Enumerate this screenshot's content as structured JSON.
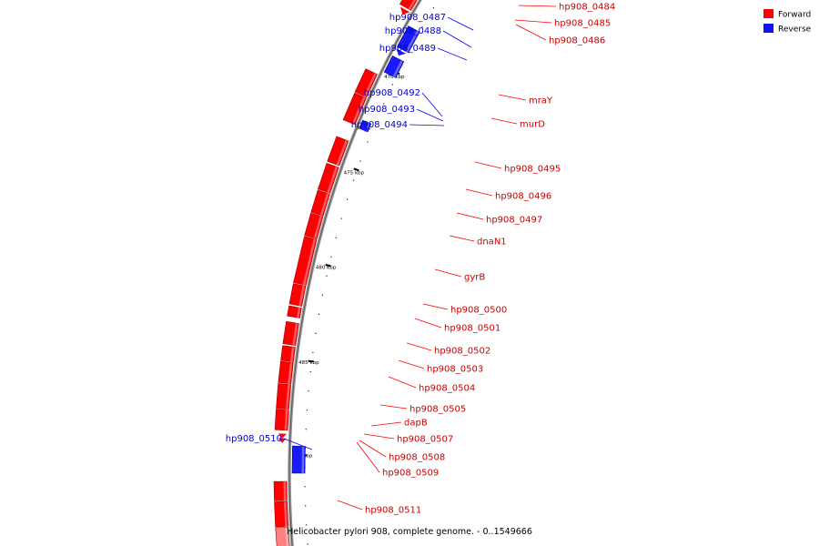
{
  "caption": "Helicobacter pylori 908, complete genome. - 0..1549666",
  "legend": [
    {
      "label": "Forward",
      "color": "#ff0000"
    },
    {
      "label": "Reverse",
      "color": "#1010ff"
    }
  ],
  "scale_ticks": [
    {
      "label": "470 kbp"
    },
    {
      "label": "475 kbp"
    },
    {
      "label": "480 kbp"
    },
    {
      "label": "485 kbp"
    },
    {
      "label": "490 kbp"
    }
  ],
  "forward_genes": [
    {
      "label": "hp908_0484"
    },
    {
      "label": "hp908_0485"
    },
    {
      "label": "hp908_0486"
    },
    {
      "label": "mraY"
    },
    {
      "label": "murD"
    },
    {
      "label": "hp908_0495"
    },
    {
      "label": "hp908_0496"
    },
    {
      "label": "hp908_0497"
    },
    {
      "label": "dnaN1"
    },
    {
      "label": "gyrB"
    },
    {
      "label": "hp908_0500"
    },
    {
      "label": "hp908_0501"
    },
    {
      "label": "hp908_0502"
    },
    {
      "label": "hp908_0503"
    },
    {
      "label": "hp908_0504"
    },
    {
      "label": "hp908_0505"
    },
    {
      "label": "dapB"
    },
    {
      "label": "hp908_0507"
    },
    {
      "label": "hp908_0508"
    },
    {
      "label": "hp908_0509"
    },
    {
      "label": "hp908_0511"
    }
  ],
  "reverse_genes": [
    {
      "label": "hp908_0487"
    },
    {
      "label": "hp908_0488"
    },
    {
      "label": "hp908_0489"
    },
    {
      "label": "hp908_0492"
    },
    {
      "label": "hp908_0493"
    },
    {
      "label": "hp908_0494"
    },
    {
      "label": "hp908_0510"
    }
  ]
}
